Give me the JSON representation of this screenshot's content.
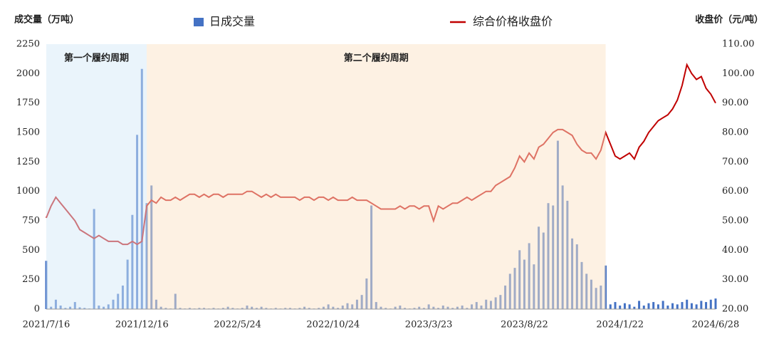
{
  "chart_data": {
    "type": "bar-line",
    "y_axis_label": "成交量（万吨）",
    "y2_axis_label": "收盘价（元/吨）",
    "categories": [
      "2021/7/16",
      null,
      null,
      null,
      null,
      null,
      null,
      null,
      null,
      null,
      null,
      null,
      null,
      null,
      null,
      null,
      null,
      null,
      null,
      null,
      "2021/12/16",
      null,
      null,
      null,
      null,
      null,
      null,
      null,
      null,
      null,
      null,
      null,
      null,
      null,
      null,
      null,
      null,
      null,
      null,
      null,
      "2022/5/24",
      null,
      null,
      null,
      null,
      null,
      null,
      null,
      null,
      null,
      null,
      null,
      null,
      null,
      null,
      null,
      null,
      null,
      null,
      null,
      "2022/10/24",
      null,
      null,
      null,
      null,
      null,
      null,
      null,
      null,
      null,
      null,
      null,
      null,
      null,
      null,
      null,
      null,
      null,
      null,
      null,
      "2023/3/23",
      null,
      null,
      null,
      null,
      null,
      null,
      null,
      null,
      null,
      null,
      null,
      null,
      null,
      null,
      null,
      null,
      null,
      null,
      null,
      "2023/8/22",
      null,
      null,
      null,
      null,
      null,
      null,
      null,
      null,
      null,
      null,
      null,
      null,
      null,
      null,
      null,
      null,
      null,
      null,
      null,
      "2024/1/22",
      null,
      null,
      null,
      null,
      null,
      null,
      null,
      null,
      null,
      null,
      null,
      null,
      null,
      null,
      null,
      null,
      null,
      null,
      null,
      "2024/6/28"
    ],
    "series": [
      {
        "name": "日成交量",
        "type": "bar",
        "color": "#4472c4",
        "values": [
          410,
          20,
          80,
          30,
          10,
          20,
          60,
          15,
          10,
          5,
          850,
          30,
          20,
          40,
          80,
          130,
          200,
          420,
          800,
          1480,
          2040,
          900,
          1050,
          80,
          20,
          10,
          5,
          130,
          10,
          5,
          10,
          5,
          10,
          10,
          5,
          10,
          5,
          10,
          20,
          10,
          5,
          10,
          30,
          20,
          10,
          20,
          10,
          5,
          10,
          5,
          10,
          10,
          5,
          10,
          20,
          10,
          5,
          10,
          20,
          40,
          20,
          10,
          30,
          50,
          40,
          80,
          120,
          260,
          880,
          60,
          20,
          10,
          5,
          20,
          30,
          10,
          5,
          10,
          20,
          10,
          40,
          20,
          10,
          30,
          20,
          10,
          20,
          30,
          10,
          40,
          60,
          30,
          80,
          70,
          100,
          120,
          200,
          300,
          350,
          500,
          420,
          560,
          380,
          700,
          650,
          900,
          880,
          1430,
          1050,
          920,
          600,
          550,
          400,
          300,
          250,
          180,
          200,
          370,
          40,
          60,
          30,
          50,
          40,
          20,
          70,
          30,
          50,
          60,
          40,
          70,
          30,
          50,
          40,
          60,
          80,
          50,
          40,
          70,
          60,
          80,
          90
        ]
      },
      {
        "name": "综合价格收盘价",
        "type": "line",
        "axis": "y2",
        "color": "#c00000",
        "values": [
          51,
          55,
          58,
          56,
          54,
          52,
          50,
          47,
          46,
          45,
          44,
          45,
          44,
          43,
          43,
          43,
          42,
          42,
          43,
          42,
          43,
          55,
          57,
          56,
          58,
          57,
          57,
          58,
          57,
          58,
          59,
          59,
          58,
          59,
          58,
          59,
          59,
          58,
          59,
          59,
          59,
          59,
          60,
          60,
          59,
          58,
          59,
          58,
          59,
          58,
          58,
          58,
          58,
          57,
          58,
          58,
          57,
          58,
          58,
          57,
          58,
          57,
          57,
          57,
          58,
          57,
          57,
          57,
          56,
          55,
          54,
          54,
          54,
          54,
          55,
          54,
          55,
          55,
          54,
          55,
          55,
          50,
          55,
          54,
          55,
          56,
          56,
          57,
          58,
          57,
          58,
          59,
          60,
          60,
          62,
          63,
          64,
          65,
          68,
          72,
          70,
          73,
          71,
          75,
          76,
          78,
          80,
          81,
          81,
          80,
          79,
          76,
          74,
          73,
          73,
          71,
          74,
          80,
          76,
          72,
          71,
          72,
          73,
          71,
          75,
          77,
          80,
          82,
          84,
          85,
          86,
          88,
          91,
          96,
          103,
          100,
          98,
          99,
          95,
          93,
          90
        ]
      }
    ],
    "regions": [
      {
        "label": "第一个履约周期",
        "from": 0,
        "to": 21,
        "color": "#d6eaf8"
      },
      {
        "label": "第二个履约周期",
        "from": 21,
        "to": 117,
        "color": "#fce4c8"
      }
    ],
    "ylim": [
      0,
      2250
    ],
    "yticks": [
      0,
      250,
      500,
      750,
      1000,
      1250,
      1500,
      1750,
      2000,
      2250
    ],
    "y2lim": [
      20,
      110
    ],
    "y2ticks": [
      {
        "value": 20,
        "label": "20.00"
      },
      {
        "value": 30,
        "label": "30.00"
      },
      {
        "value": 40,
        "label": "40.00"
      },
      {
        "value": 50,
        "label": "50.00"
      },
      {
        "value": 60,
        "label": "60.00"
      },
      {
        "value": 70,
        "label": "70.00"
      },
      {
        "value": 80,
        "label": "80.00"
      },
      {
        "value": 90,
        "label": "90.00"
      },
      {
        "value": 100,
        "label": "100.00"
      },
      {
        "value": 110,
        "label": "110.00"
      }
    ]
  }
}
